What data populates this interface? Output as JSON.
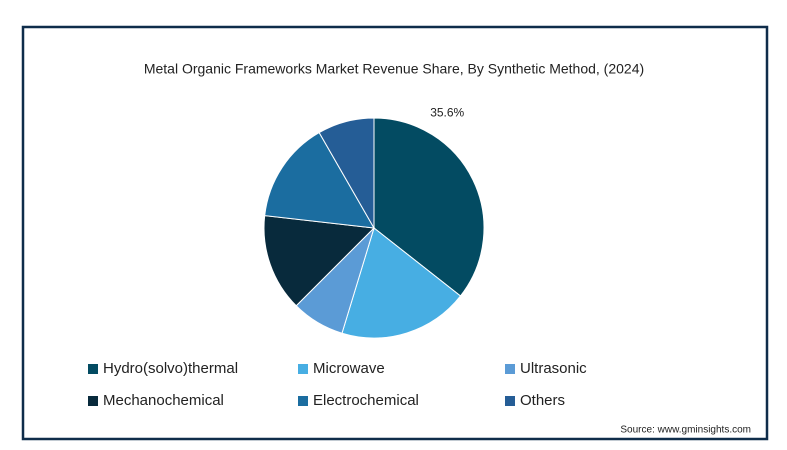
{
  "chart_data": {
    "type": "pie",
    "title": "Metal Organic Frameworks Market Revenue Share, By Synthetic Method, (2024)",
    "categories": [
      "Hydro(solvo)thermal",
      "Microwave",
      "Ultrasonic",
      "Mechanochemical",
      "Electrochemical",
      "Others"
    ],
    "values": [
      35.6,
      19.1,
      7.8,
      14.3,
      14.9,
      8.3
    ],
    "value_labels": [
      "35.6%",
      null,
      null,
      null,
      null,
      null
    ],
    "colors": [
      "#034b62",
      "#47aee3",
      "#5b9bd6",
      "#082a3c",
      "#1b6da0",
      "#255d96"
    ],
    "source": "Source: www.gminsights.com"
  }
}
